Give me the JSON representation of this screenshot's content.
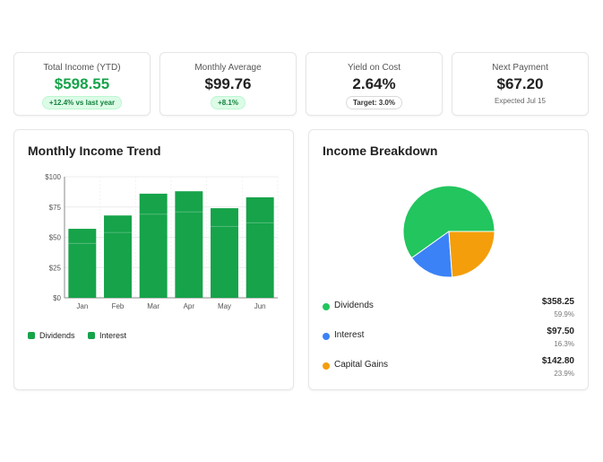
{
  "stats": [
    {
      "label": "Total Income (YTD)",
      "value": "$598.55",
      "badge": "+12.4% vs last year"
    },
    {
      "label": "Monthly Average",
      "value": "$99.76",
      "badge": "+8.1%"
    },
    {
      "label": "Yield on Cost",
      "value": "2.64%",
      "badge": "Target: 3.0%"
    },
    {
      "label": "Next Payment",
      "value": "$67.20",
      "sub": "Expected Jul 15"
    }
  ],
  "colors": {
    "accent_green": "#16a34a",
    "dividends": "#22c55e",
    "interest": "#3b82f6",
    "capital_gains": "#f59e0b",
    "bar": "#16a34a"
  },
  "trend": {
    "title": "Monthly Income Trend",
    "legend": [
      "Dividends",
      "Interest"
    ],
    "chart_data": {
      "type": "bar",
      "categories": [
        "Jan",
        "Feb",
        "Mar",
        "Apr",
        "May",
        "Jun"
      ],
      "series": [
        {
          "name": "Dividends",
          "values": [
            45,
            54,
            69,
            71,
            59,
            62
          ]
        },
        {
          "name": "Interest",
          "values": [
            12,
            14,
            17,
            17,
            15,
            21
          ]
        }
      ],
      "totals": [
        57,
        68,
        86,
        88,
        74,
        83
      ],
      "ylim": [
        0,
        100
      ],
      "yticks": [
        "$0",
        "$25",
        "$50",
        "$75",
        "$100"
      ],
      "ytick_values": [
        0,
        25,
        50,
        75,
        100
      ],
      "grid": true,
      "legend_position": "bottom"
    }
  },
  "breakdown": {
    "title": "Income Breakdown",
    "items": [
      {
        "label": "Dividends",
        "amount": "$358.25",
        "pct": "59.9%",
        "value": 358.25
      },
      {
        "label": "Interest",
        "amount": "$97.50",
        "pct": "16.3%",
        "value": 97.5
      },
      {
        "label": "Capital Gains",
        "amount": "$142.80",
        "pct": "23.9%",
        "value": 142.8
      }
    ]
  }
}
